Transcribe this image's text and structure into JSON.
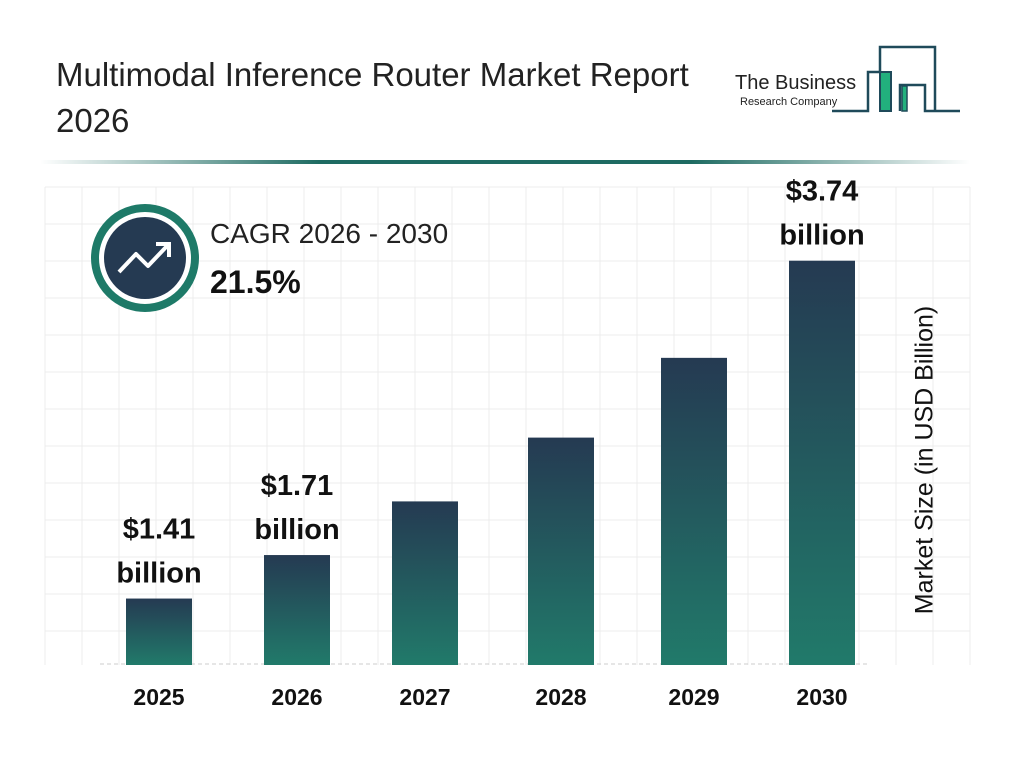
{
  "header": {
    "title": "Multimodal Inference Router Market Report 2026"
  },
  "logo": {
    "line1": "The Business",
    "line2": "Research Company"
  },
  "cagr": {
    "label": "CAGR 2026 - 2030",
    "value": "21.5%",
    "icon": "trend-up-arrow-icon"
  },
  "colors": {
    "bar_top": "#253a52",
    "bar_bottom": "#217a6a",
    "accent": "#1e7a68",
    "logo_green": "#22b07d"
  },
  "chart_data": {
    "type": "bar",
    "categories": [
      "2025",
      "2026",
      "2027",
      "2028",
      "2029",
      "2030"
    ],
    "values": [
      1.41,
      1.71,
      2.08,
      2.52,
      3.07,
      3.74
    ],
    "data_labels": [
      {
        "index": 0,
        "value": "$1.41",
        "unit": "billion"
      },
      {
        "index": 1,
        "value": "$1.71",
        "unit": "billion"
      },
      {
        "index": 5,
        "value": "$3.74",
        "unit": "billion"
      }
    ],
    "title": "",
    "xlabel": "",
    "ylabel": "Market Size (in USD Billion)",
    "grid": true,
    "y_axis_ticks": false
  }
}
